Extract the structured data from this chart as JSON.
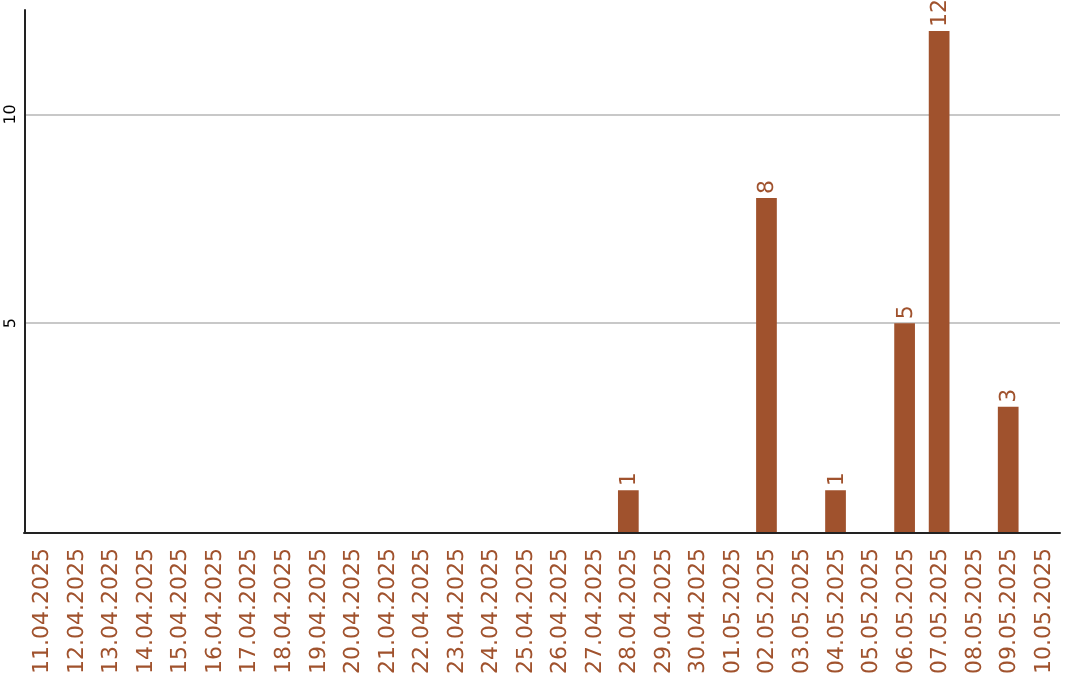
{
  "chart_data": {
    "type": "bar",
    "categories": [
      "11.04.2025",
      "12.04.2025",
      "13.04.2025",
      "14.04.2025",
      "15.04.2025",
      "16.04.2025",
      "17.04.2025",
      "18.04.2025",
      "19.04.2025",
      "20.04.2025",
      "21.04.2025",
      "22.04.2025",
      "23.04.2025",
      "24.04.2025",
      "25.04.2025",
      "26.04.2025",
      "27.04.2025",
      "28.04.2025",
      "29.04.2025",
      "30.04.2025",
      "01.05.2025",
      "02.05.2025",
      "03.05.2025",
      "04.05.2025",
      "05.05.2025",
      "06.05.2025",
      "07.05.2025",
      "08.05.2025",
      "09.05.2025",
      "10.05.2025"
    ],
    "values": [
      0,
      0,
      0,
      0,
      0,
      0,
      0,
      0,
      0,
      0,
      0,
      0,
      0,
      0,
      0,
      0,
      0,
      1,
      0,
      0,
      0,
      8,
      0,
      1,
      0,
      5,
      12,
      0,
      3,
      0
    ],
    "value_labels": [
      null,
      null,
      null,
      null,
      null,
      null,
      null,
      null,
      null,
      null,
      null,
      null,
      null,
      null,
      null,
      null,
      null,
      "1",
      null,
      null,
      null,
      "8",
      null,
      "1",
      null,
      "5",
      "12",
      null,
      "3",
      null
    ],
    "color": "#a0522d",
    "ylim": [
      0,
      12.5
    ],
    "yticks": [
      5,
      10
    ],
    "grid": "y"
  }
}
